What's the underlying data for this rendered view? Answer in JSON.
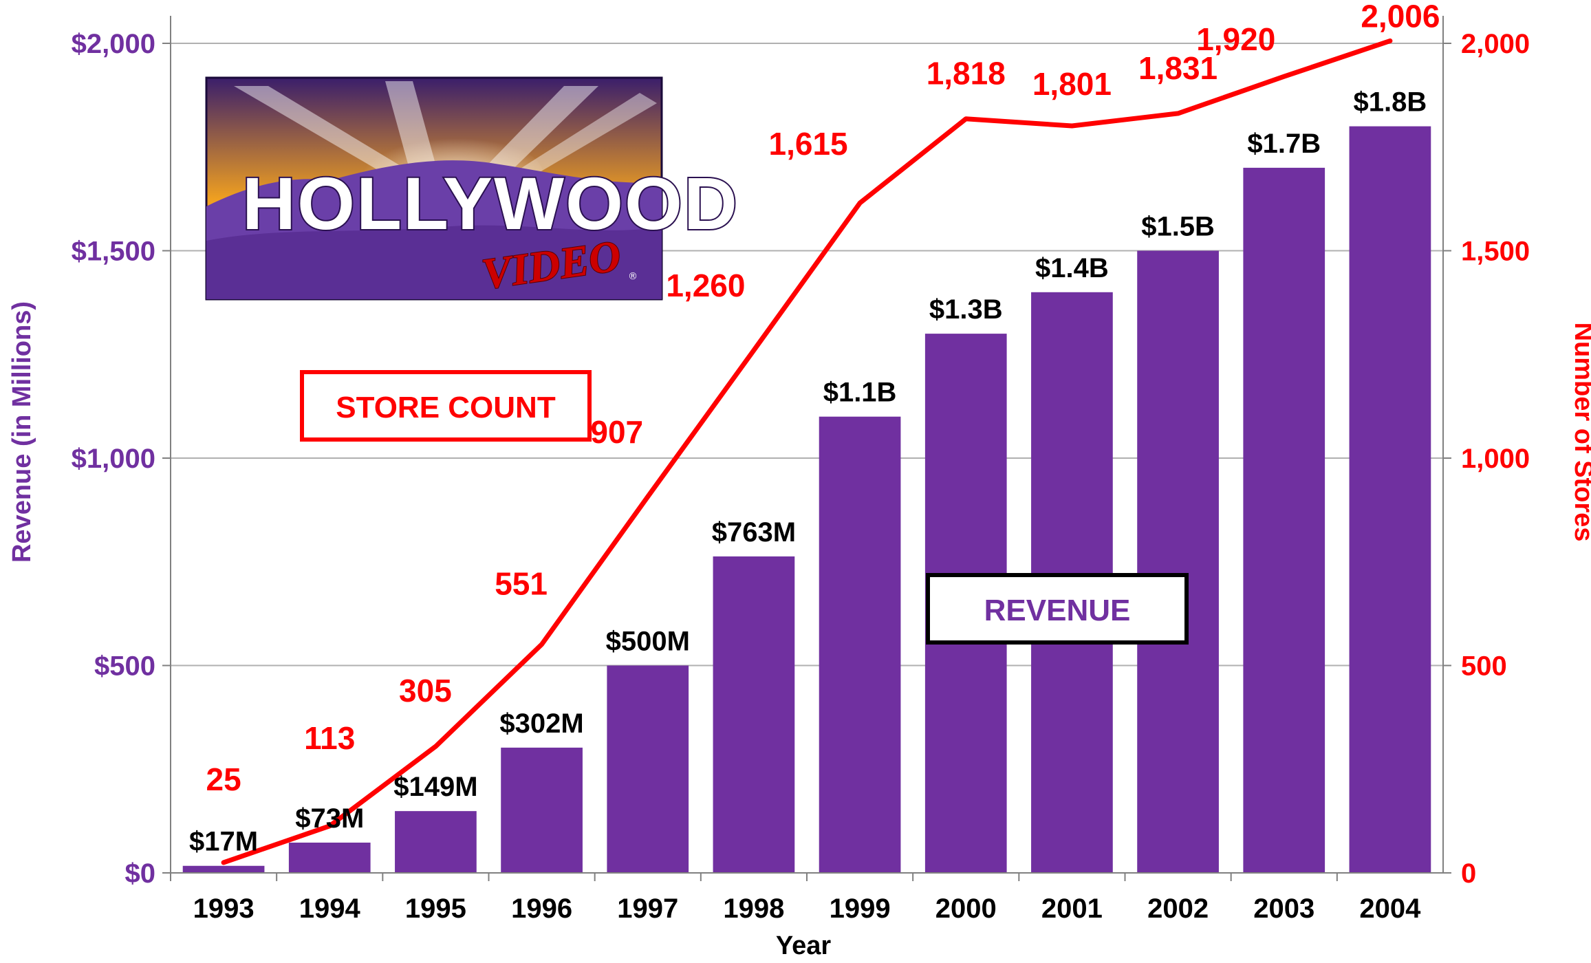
{
  "logo": {
    "brand_main": "HOLLYWOOD",
    "brand_sub": "VIDEO",
    "registered_mark": "®"
  },
  "annotations": {
    "store_count_label": "STORE COUNT",
    "revenue_label": "REVENUE"
  },
  "colors": {
    "bar": "#7030A0",
    "line": "#FF0000",
    "left_axis": "#7030A0",
    "right_axis": "#FF0000",
    "grid": "#b0b0b0"
  },
  "chart_data": {
    "type": "bar",
    "title": "",
    "xlabel": "Year",
    "ylabel": "Revenue (in Millions)",
    "y2label": "Number of Stores",
    "categories": [
      "1993",
      "1994",
      "1995",
      "1996",
      "1997",
      "1998",
      "1999",
      "2000",
      "2001",
      "2002",
      "2003",
      "2004"
    ],
    "ylim": [
      0,
      2000
    ],
    "y2lim": [
      0,
      2000
    ],
    "left_ticks": [
      0,
      500,
      1000,
      1500,
      2000
    ],
    "left_tick_labels": [
      "$0",
      "$500",
      "$1,000",
      "$1,500",
      "$2,000"
    ],
    "right_ticks": [
      0,
      500,
      1000,
      1500,
      2000
    ],
    "right_tick_labels": [
      "0",
      "500",
      "1,000",
      "1,500",
      "2,000"
    ],
    "grid": true,
    "series": [
      {
        "name": "Revenue",
        "type": "bar",
        "axis": "left",
        "values": [
          17,
          73,
          149,
          302,
          500,
          763,
          1100,
          1300,
          1400,
          1500,
          1700,
          1800
        ],
        "labels": [
          "$17M",
          "$73M",
          "$149M",
          "$302M",
          "$500M",
          "$763M",
          "$1.1B",
          "$1.3B",
          "$1.4B",
          "$1.5B",
          "$1.7B",
          "$1.8B"
        ]
      },
      {
        "name": "Store Count",
        "type": "line",
        "axis": "right",
        "values": [
          25,
          113,
          305,
          551,
          907,
          1260,
          1615,
          1818,
          1801,
          1831,
          1920,
          2006
        ],
        "labels": [
          "25",
          "113",
          "305",
          "551",
          "907",
          "1,260",
          "1,615",
          "1,818",
          "1,801",
          "1,831",
          "1,920",
          "2,006"
        ]
      }
    ]
  }
}
